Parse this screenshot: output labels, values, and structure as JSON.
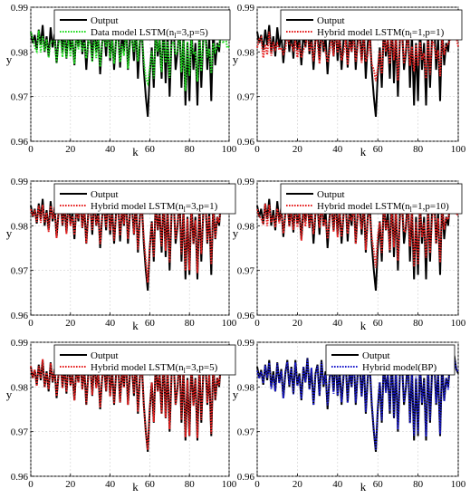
{
  "figure": {
    "background": "#ffffff"
  },
  "chart_data": [
    {
      "type": "line",
      "xlabel": "k",
      "ylabel": "y",
      "xlim": [
        0,
        100
      ],
      "ylim": [
        0.96,
        0.99
      ],
      "xticks": [
        "0",
        "20",
        "40",
        "60",
        "80",
        "100"
      ],
      "yticks": [
        "0.96",
        "0.97",
        "0.98",
        "0.99"
      ],
      "legend_position": "top-left",
      "legend": [
        {
          "label": "Output",
          "color": "#000000",
          "style": "solid"
        },
        {
          "label_main": "Data model LSTM(n",
          "label_sub": "l",
          "label_tail": "=3,p=5)",
          "color": "#22dd22",
          "style": "dotted"
        }
      ],
      "series": [
        {
          "role": "output",
          "color": "#000000",
          "style": "solid"
        },
        {
          "role": "model",
          "color": "#22dd22",
          "style": "dotted",
          "smooth": 0.62,
          "noise": 0.0018
        }
      ]
    },
    {
      "type": "line",
      "xlabel": "k",
      "ylabel": "y",
      "xlim": [
        0,
        100
      ],
      "ylim": [
        0.96,
        0.99
      ],
      "xticks": [
        "0",
        "20",
        "40",
        "60",
        "80",
        "100"
      ],
      "yticks": [
        "0.96",
        "0.97",
        "0.98",
        "0.99"
      ],
      "legend_position": "top-left",
      "legend": [
        {
          "label": "Output",
          "color": "#000000",
          "style": "solid"
        },
        {
          "label_main": "Hybrid model LSTM(n",
          "label_sub": "l",
          "label_tail": "=1,p=1)",
          "color": "#e62020",
          "style": "dotted"
        }
      ],
      "series": [
        {
          "role": "output",
          "color": "#000000",
          "style": "solid"
        },
        {
          "role": "model",
          "color": "#e62020",
          "style": "dotted",
          "smooth": 0.5,
          "noise": 0.0022
        }
      ]
    },
    {
      "type": "line",
      "xlabel": "k",
      "ylabel": "y",
      "xlim": [
        0,
        100
      ],
      "ylim": [
        0.96,
        0.99
      ],
      "xticks": [
        "0",
        "20",
        "40",
        "60",
        "80",
        "100"
      ],
      "yticks": [
        "0.96",
        "0.97",
        "0.98",
        "0.99"
      ],
      "legend_position": "top-left",
      "legend": [
        {
          "label": "Output",
          "color": "#000000",
          "style": "solid"
        },
        {
          "label_main": "Hybrid model LSTM(n",
          "label_sub": "l",
          "label_tail": "=3,p=1)",
          "color": "#e62020",
          "style": "dotted"
        }
      ],
      "series": [
        {
          "role": "output",
          "color": "#000000",
          "style": "solid"
        },
        {
          "role": "model",
          "color": "#e62020",
          "style": "dotted",
          "smooth": 0.85,
          "noise": 0.0008
        }
      ]
    },
    {
      "type": "line",
      "xlabel": "k",
      "ylabel": "y",
      "xlim": [
        0,
        100
      ],
      "ylim": [
        0.96,
        0.99
      ],
      "xticks": [
        "0",
        "20",
        "40",
        "60",
        "80",
        "100"
      ],
      "yticks": [
        "0.96",
        "0.97",
        "0.98",
        "0.99"
      ],
      "legend_position": "top-left",
      "legend": [
        {
          "label": "Output",
          "color": "#000000",
          "style": "solid"
        },
        {
          "label_main": "Hybrid model LSTM(n",
          "label_sub": "l",
          "label_tail": "=1,p=10)",
          "color": "#e62020",
          "style": "dotted"
        }
      ],
      "series": [
        {
          "role": "output",
          "color": "#000000",
          "style": "solid"
        },
        {
          "role": "model",
          "color": "#e62020",
          "style": "dotted",
          "smooth": 0.72,
          "noise": 0.0014
        }
      ]
    },
    {
      "type": "line",
      "xlabel": "k",
      "ylabel": "y",
      "xlim": [
        0,
        100
      ],
      "ylim": [
        0.96,
        0.99
      ],
      "xticks": [
        "0",
        "20",
        "40",
        "60",
        "80",
        "100"
      ],
      "yticks": [
        "0.96",
        "0.97",
        "0.98",
        "0.99"
      ],
      "legend_position": "top-left",
      "legend": [
        {
          "label": "Output",
          "color": "#000000",
          "style": "solid"
        },
        {
          "label_main": "Hybrid model LSTM(n",
          "label_sub": "l",
          "label_tail": "=3,p=5)",
          "color": "#e62020",
          "style": "dotted"
        }
      ],
      "series": [
        {
          "role": "output",
          "color": "#000000",
          "style": "solid"
        },
        {
          "role": "model",
          "color": "#e62020",
          "style": "dotted",
          "smooth": 0.97,
          "noise": 0.0004
        }
      ]
    },
    {
      "type": "line",
      "xlabel": "k",
      "ylabel": "y",
      "xlim": [
        0,
        100
      ],
      "ylim": [
        0.96,
        0.99
      ],
      "xticks": [
        "0",
        "20",
        "40",
        "60",
        "80",
        "100"
      ],
      "yticks": [
        "0.96",
        "0.97",
        "0.98",
        "0.99"
      ],
      "legend_position": "top-right",
      "legend": [
        {
          "label": "Output",
          "color": "#000000",
          "style": "solid"
        },
        {
          "label": "Hybrid model(BP)",
          "color": "#1a1acc",
          "style": "dotted"
        }
      ],
      "series": [
        {
          "role": "output",
          "color": "#000000",
          "style": "solid"
        },
        {
          "role": "model",
          "color": "#1a1acc",
          "style": "dotted",
          "smooth": 0.93,
          "noise": 0.0007
        }
      ]
    }
  ],
  "shared_output_y": [
    0.9845,
    0.982,
    0.9838,
    0.9805,
    0.985,
    0.9815,
    0.986,
    0.98,
    0.9835,
    0.979,
    0.9855,
    0.981,
    0.984,
    0.9775,
    0.983,
    0.986,
    0.98,
    0.9845,
    0.9785,
    0.986,
    0.9805,
    0.983,
    0.977,
    0.9845,
    0.981,
    0.9865,
    0.9795,
    0.984,
    0.976,
    0.983,
    0.985,
    0.978,
    0.986,
    0.98,
    0.9835,
    0.975,
    0.982,
    0.9845,
    0.979,
    0.987,
    0.978,
    0.984,
    0.976,
    0.983,
    0.9855,
    0.9765,
    0.984,
    0.98,
    0.987,
    0.976,
    0.983,
    0.9845,
    0.978,
    0.986,
    0.974,
    0.982,
    0.985,
    0.976,
    0.97,
    0.9655,
    0.975,
    0.981,
    0.972,
    0.986,
    0.979,
    0.983,
    0.974,
    0.987,
    0.973,
    0.9845,
    0.97,
    0.983,
    0.986,
    0.976,
    0.98,
    0.987,
    0.972,
    0.984,
    0.968,
    0.982,
    0.969,
    0.9855,
    0.976,
    0.982,
    0.968,
    0.985,
    0.972,
    0.9835,
    0.987,
    0.976,
    0.983,
    0.969,
    0.9855,
    0.977,
    0.982,
    0.98,
    0.986,
    0.985,
    0.987,
    0.984,
    0.983
  ]
}
